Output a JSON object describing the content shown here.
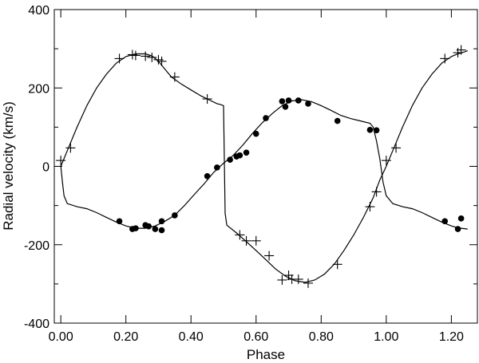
{
  "chart_data": {
    "type": "scatter",
    "xlabel": "Phase",
    "ylabel": "Radial velocity (km/s)",
    "xlim": [
      -0.02,
      1.28
    ],
    "ylim": [
      -400,
      400
    ],
    "x_ticks": [
      {
        "value": 0.0,
        "label": "0.00"
      },
      {
        "value": 0.2,
        "label": "0.20"
      },
      {
        "value": 0.4,
        "label": "0.40"
      },
      {
        "value": 0.6,
        "label": "0.60"
      },
      {
        "value": 0.8,
        "label": "0.80"
      },
      {
        "value": 1.0,
        "label": "1.00"
      },
      {
        "value": 1.2,
        "label": "1.20"
      }
    ],
    "y_ticks": [
      {
        "value": 400,
        "label": "400"
      },
      {
        "value": 200,
        "label": "200"
      },
      {
        "value": 0,
        "label": "0"
      },
      {
        "value": -200,
        "label": "-200"
      },
      {
        "value": -400,
        "label": "-400"
      }
    ],
    "grid": false,
    "series": [
      {
        "marker": "plus",
        "points": [
          [
            0.0,
            15
          ],
          [
            0.03,
            47
          ],
          [
            0.18,
            275
          ],
          [
            0.22,
            285
          ],
          [
            0.23,
            283
          ],
          [
            0.26,
            281
          ],
          [
            0.28,
            278
          ],
          [
            0.3,
            272
          ],
          [
            0.31,
            268
          ],
          [
            0.35,
            228
          ],
          [
            0.45,
            172
          ],
          [
            0.55,
            -175
          ],
          [
            0.57,
            -190
          ],
          [
            0.6,
            -190
          ],
          [
            0.64,
            -228
          ],
          [
            0.68,
            -290
          ],
          [
            0.7,
            -278
          ],
          [
            0.71,
            -288
          ],
          [
            0.73,
            -288
          ],
          [
            0.76,
            -298
          ],
          [
            0.85,
            -250
          ],
          [
            0.95,
            -103
          ],
          [
            0.97,
            -65
          ],
          [
            1.0,
            15
          ],
          [
            1.03,
            47
          ],
          [
            1.18,
            275
          ],
          [
            1.22,
            290
          ],
          [
            1.23,
            297
          ]
        ]
      },
      {
        "marker": "dot",
        "points": [
          [
            0.18,
            -140
          ],
          [
            0.22,
            -160
          ],
          [
            0.23,
            -158
          ],
          [
            0.26,
            -150
          ],
          [
            0.27,
            -153
          ],
          [
            0.29,
            -160
          ],
          [
            0.31,
            -163
          ],
          [
            0.31,
            -140
          ],
          [
            0.35,
            -125
          ],
          [
            0.45,
            -25
          ],
          [
            0.48,
            -3
          ],
          [
            0.52,
            17
          ],
          [
            0.54,
            25
          ],
          [
            0.55,
            28
          ],
          [
            0.57,
            35
          ],
          [
            0.6,
            83
          ],
          [
            0.63,
            123
          ],
          [
            0.68,
            166
          ],
          [
            0.69,
            152
          ],
          [
            0.7,
            168
          ],
          [
            0.73,
            168
          ],
          [
            0.76,
            160
          ],
          [
            0.85,
            116
          ],
          [
            0.95,
            93
          ],
          [
            0.97,
            92
          ],
          [
            1.18,
            -140
          ],
          [
            1.22,
            -160
          ],
          [
            1.23,
            -133
          ]
        ]
      }
    ],
    "curves": [
      {
        "style": "line",
        "points": [
          [
            0.0,
            0
          ],
          [
            0.02,
            40
          ],
          [
            0.05,
            100
          ],
          [
            0.08,
            155
          ],
          [
            0.11,
            200
          ],
          [
            0.14,
            235
          ],
          [
            0.17,
            263
          ],
          [
            0.2,
            280
          ],
          [
            0.23,
            287
          ],
          [
            0.26,
            287
          ],
          [
            0.28,
            282
          ],
          [
            0.3,
            268
          ],
          [
            0.32,
            248
          ],
          [
            0.34,
            228
          ],
          [
            0.37,
            210
          ],
          [
            0.4,
            195
          ],
          [
            0.43,
            180
          ],
          [
            0.46,
            168
          ],
          [
            0.48,
            160
          ],
          [
            0.49,
            158
          ],
          [
            0.5,
            155
          ],
          [
            0.505,
            -120
          ],
          [
            0.51,
            -150
          ],
          [
            0.54,
            -170
          ],
          [
            0.57,
            -192
          ],
          [
            0.6,
            -215
          ],
          [
            0.63,
            -238
          ],
          [
            0.66,
            -262
          ],
          [
            0.69,
            -280
          ],
          [
            0.72,
            -292
          ],
          [
            0.75,
            -296
          ],
          [
            0.78,
            -290
          ],
          [
            0.81,
            -275
          ],
          [
            0.84,
            -250
          ],
          [
            0.87,
            -215
          ],
          [
            0.9,
            -175
          ],
          [
            0.93,
            -130
          ],
          [
            0.96,
            -80
          ],
          [
            0.98,
            -35
          ],
          [
            1.0,
            0
          ],
          [
            1.02,
            40
          ],
          [
            1.05,
            100
          ],
          [
            1.08,
            155
          ],
          [
            1.11,
            200
          ],
          [
            1.14,
            235
          ],
          [
            1.17,
            263
          ],
          [
            1.2,
            280
          ],
          [
            1.22,
            287
          ],
          [
            1.24,
            292
          ],
          [
            1.25,
            295
          ]
        ]
      },
      {
        "style": "line",
        "points": [
          [
            0.0,
            0
          ],
          [
            0.005,
            -40
          ],
          [
            0.01,
            -75
          ],
          [
            0.02,
            -95
          ],
          [
            0.05,
            -103
          ],
          [
            0.08,
            -108
          ],
          [
            0.11,
            -118
          ],
          [
            0.14,
            -130
          ],
          [
            0.17,
            -142
          ],
          [
            0.2,
            -152
          ],
          [
            0.23,
            -158
          ],
          [
            0.26,
            -158
          ],
          [
            0.29,
            -152
          ],
          [
            0.32,
            -140
          ],
          [
            0.35,
            -125
          ],
          [
            0.38,
            -100
          ],
          [
            0.41,
            -72
          ],
          [
            0.44,
            -45
          ],
          [
            0.47,
            -15
          ],
          [
            0.5,
            8
          ],
          [
            0.53,
            28
          ],
          [
            0.56,
            55
          ],
          [
            0.59,
            85
          ],
          [
            0.62,
            112
          ],
          [
            0.65,
            135
          ],
          [
            0.68,
            155
          ],
          [
            0.71,
            167
          ],
          [
            0.74,
            170
          ],
          [
            0.77,
            165
          ],
          [
            0.8,
            155
          ],
          [
            0.83,
            143
          ],
          [
            0.86,
            130
          ],
          [
            0.89,
            122
          ],
          [
            0.92,
            116
          ],
          [
            0.95,
            110
          ],
          [
            0.96,
            100
          ],
          [
            0.97,
            65
          ],
          [
            0.98,
            20
          ],
          [
            0.99,
            -40
          ],
          [
            1.0,
            -75
          ],
          [
            1.02,
            -95
          ],
          [
            1.05,
            -103
          ],
          [
            1.08,
            -108
          ],
          [
            1.11,
            -118
          ],
          [
            1.14,
            -130
          ],
          [
            1.17,
            -142
          ],
          [
            1.2,
            -152
          ],
          [
            1.22,
            -157
          ],
          [
            1.25,
            -160
          ]
        ]
      }
    ],
    "colors": {
      "ink": "#000000",
      "background": "#ffffff"
    }
  }
}
